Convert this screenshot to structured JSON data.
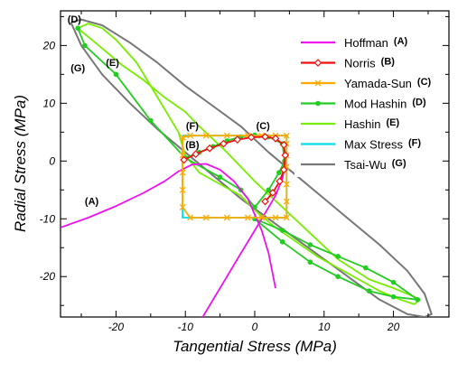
{
  "chart_data": {
    "type": "line",
    "xlabel": "Tangential Stress (MPa)",
    "ylabel": "Radial Stress (MPa)",
    "xlim": [
      -28,
      28
    ],
    "ylim": [
      -27,
      26
    ],
    "xticks": [
      -20,
      -10,
      0,
      10,
      20
    ],
    "yticks": [
      -20,
      -10,
      0,
      10,
      20
    ],
    "grid": false,
    "legend_position": "top-right",
    "series": [
      {
        "name": "Hoffman",
        "tag": "(A)",
        "color": "#ee10ee",
        "marker": "none",
        "x": [
          -28,
          -24,
          -20,
          -16,
          -13,
          -11,
          -9,
          -7,
          -5,
          -3,
          -1,
          1,
          2,
          3
        ],
        "y": [
          -11.5,
          -9.8,
          -7.8,
          -5.5,
          -3.5,
          -1.8,
          -0.6,
          -0.5,
          -1.5,
          -3.5,
          -6.5,
          -12,
          -16,
          -22
        ]
      },
      {
        "name": "Hoffman",
        "tag": "(A)",
        "color": "#ee10ee",
        "marker": "none",
        "x": [
          -8,
          -6,
          -4,
          -2,
          -0.5,
          1,
          3,
          4,
          4.5
        ],
        "y": [
          -28,
          -24,
          -20,
          -16,
          -13,
          -10,
          -6,
          -3,
          0
        ]
      },
      {
        "name": "Norris",
        "tag": "(B)",
        "color": "#ee1111",
        "marker": "diamond",
        "x": [
          -10.2,
          -8.5,
          -6.5,
          -4.5,
          -2.5,
          -0.5,
          1.5,
          3.0,
          4.2,
          4.4,
          4.2,
          3.6,
          2.6,
          1.5
        ],
        "y": [
          0.2,
          1.2,
          2.2,
          3.0,
          3.7,
          4.1,
          4.2,
          3.9,
          2.8,
          1.0,
          -1.5,
          -3.5,
          -5.5,
          -7.0
        ]
      },
      {
        "name": "Yamada-Sun",
        "tag": "(C)",
        "color": "#ffaa00",
        "marker": "x",
        "x": [
          -10.4,
          -10.4,
          -10.4,
          -10.4,
          -10.4,
          -9.3,
          -7.0,
          -4.0,
          -1.0,
          1.0,
          3.0,
          4.6,
          4.6,
          4.6,
          4.6,
          4.6,
          4.6,
          4.6,
          3.0,
          1.0,
          -1.0,
          -4.0,
          -7.0,
          -9.3,
          -10.4
        ],
        "y": [
          4.1,
          1.0,
          -2.0,
          -5.0,
          -8.0,
          -9.8,
          -9.8,
          -9.8,
          -9.8,
          -9.8,
          -9.8,
          -9.8,
          -7.0,
          -4.0,
          -1.0,
          1.0,
          3.0,
          4.4,
          4.4,
          4.4,
          4.4,
          4.4,
          4.4,
          4.4,
          4.1
        ]
      },
      {
        "name": "Mod Hashin",
        "tag": "(D)",
        "color": "#22cc22",
        "marker": "circle",
        "x": [
          -25.5,
          -24.5,
          -20,
          -15,
          -10,
          -5,
          -2,
          0,
          2,
          3.5,
          4.3,
          4.0,
          2.0,
          0,
          -2,
          -4,
          -6,
          -8,
          -10
        ],
        "y": [
          23,
          20,
          15,
          7,
          0.5,
          -2.8,
          -5,
          -8,
          -5,
          -2,
          0,
          3,
          4.2,
          4.5,
          4.2,
          3.5,
          2.5,
          1.5,
          0.5
        ]
      },
      {
        "name": "Mod Hashin",
        "tag": "(D)",
        "color": "#22cc22",
        "marker": "circle",
        "x": [
          0,
          4,
          8,
          12,
          16,
          20,
          23.5,
          20,
          16.5,
          12,
          8,
          4,
          0
        ],
        "y": [
          -10,
          -12,
          -14.5,
          -16.5,
          -18.5,
          -21,
          -24,
          -23.5,
          -22.5,
          -20,
          -17.5,
          -14,
          -10
        ]
      },
      {
        "name": "Hashin",
        "tag": "(E)",
        "color": "#77ee00",
        "marker": "none",
        "x": [
          -25.5,
          -24.0,
          -22.0,
          -20.0,
          -17.0,
          -14.0,
          -11.0,
          -10.0,
          -8.0,
          -5.0,
          -2.0,
          0.0,
          3.0,
          6.0,
          9.0,
          12.0,
          15.0,
          18.0,
          21.0,
          23.0,
          23.8,
          23.0,
          20.0,
          16.5,
          12.0,
          8.0,
          4.0,
          0.0,
          -4.0,
          -8.0,
          -10.0,
          -13.0,
          -16.0,
          -19.0,
          -22.0,
          -24.0,
          -25.5
        ],
        "y": [
          23.0,
          23.8,
          23.0,
          21.0,
          17.0,
          11.0,
          5.0,
          1.0,
          -2.0,
          -4.0,
          -6.0,
          -8.5,
          -11.5,
          -14.0,
          -16.5,
          -18.5,
          -20.5,
          -22.5,
          -24.0,
          -24.8,
          -24.0,
          -23.5,
          -22.0,
          -20.5,
          -17.0,
          -12.5,
          -8.0,
          -3.5,
          1.5,
          6.0,
          8.5,
          11.0,
          14.0,
          16.5,
          19.5,
          21.5,
          23.0
        ]
      },
      {
        "name": "Max Stress",
        "tag": "(F)",
        "color": "#00dde8",
        "marker": "none",
        "x": [
          -10.4,
          4.6,
          4.6,
          -10.4,
          -10.4
        ],
        "y": [
          4.4,
          4.4,
          -9.8,
          -9.8,
          4.4
        ]
      },
      {
        "name": "Tsai-Wu",
        "tag": "(G)",
        "color": "#777777",
        "marker": "none",
        "x": [
          -26.5,
          -25,
          -22,
          -18,
          -14,
          -10,
          -6,
          -2,
          2,
          6,
          10,
          14,
          18,
          22,
          24.5,
          25.5,
          24.5,
          22,
          18,
          14,
          10,
          6,
          2,
          -2,
          -6,
          -10,
          -14,
          -18,
          -22,
          -25,
          -26.5
        ],
        "y": [
          24.0,
          24.5,
          23.5,
          20.5,
          17.0,
          13.0,
          9.5,
          6.0,
          1.5,
          -2.5,
          -6.5,
          -10.5,
          -14.5,
          -19.0,
          -23.0,
          -26.5,
          -27.0,
          -26.5,
          -24.0,
          -20.5,
          -17.0,
          -13.5,
          -10.0,
          -6.5,
          -2.5,
          1.5,
          5.5,
          10.0,
          15.0,
          20.0,
          24.0
        ]
      }
    ],
    "annotations": [
      {
        "text": "(D)",
        "x": -26.0,
        "y": 24.0
      },
      {
        "text": "(E)",
        "x": -20.5,
        "y": 16.5
      },
      {
        "text": "(G)",
        "x": -25.5,
        "y": 15.5
      },
      {
        "text": "(A)",
        "x": -23.5,
        "y": -7.5
      },
      {
        "text": "(F)",
        "x": -9.0,
        "y": 5.5
      },
      {
        "text": "(B)",
        "x": -9.0,
        "y": 2.2
      },
      {
        "text": "(C)",
        "x": 1.2,
        "y": 5.5
      }
    ]
  }
}
